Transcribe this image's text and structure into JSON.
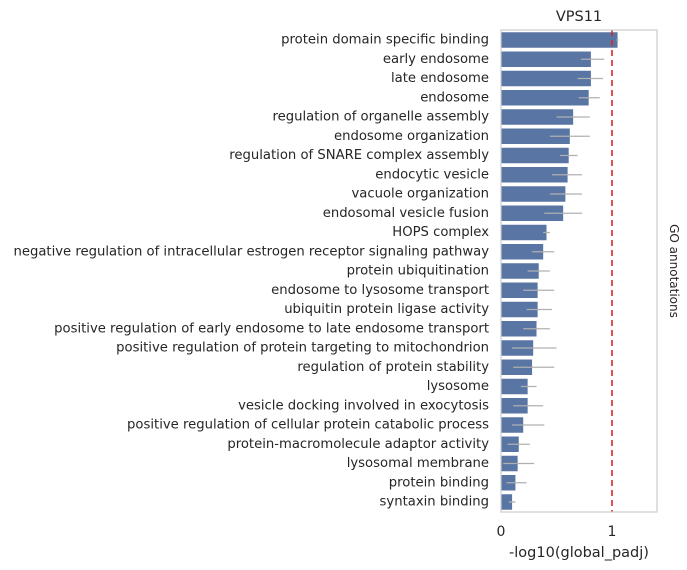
{
  "chart_data": {
    "type": "bar",
    "orientation": "horizontal",
    "title": "VPS11",
    "xlabel": "-log10(global_padj)",
    "ylabel": "",
    "side_label": "GO annotations",
    "xlim": [
      0,
      1.4
    ],
    "xticks": [
      0,
      1
    ],
    "reference_line": {
      "x": 1.0,
      "style": "dashed",
      "color": "#d62728"
    },
    "colors": {
      "bar": "#5875a4",
      "error": "#b0b0b0",
      "frame": "#cccccc"
    },
    "categories": [
      "protein domain specific binding",
      "early endosome",
      "late endosome",
      "endosome",
      "regulation of organelle assembly",
      "endosome organization",
      "regulation of SNARE complex assembly",
      "endocytic vesicle",
      "vacuole organization",
      "endosomal vesicle fusion",
      "HOPS complex",
      "negative regulation of intracellular estrogen receptor signaling pathway",
      "protein ubiquitination",
      "endosome to lysosome transport",
      "ubiquitin protein ligase activity",
      "positive regulation of early endosome to late endosome transport",
      "positive regulation of protein targeting to mitochondrion",
      "regulation of protein stability",
      "lysosome",
      "vesicle docking involved in exocytosis",
      "positive regulation of cellular protein catabolic process",
      "protein-macromolecule adaptor activity",
      "lysosomal membrane",
      "protein binding",
      "syntaxin binding"
    ],
    "values": [
      1.05,
      0.81,
      0.81,
      0.79,
      0.65,
      0.62,
      0.61,
      0.6,
      0.58,
      0.56,
      0.41,
      0.38,
      0.34,
      0.33,
      0.33,
      0.32,
      0.29,
      0.28,
      0.24,
      0.24,
      0.2,
      0.16,
      0.15,
      0.13,
      0.1
    ],
    "error_low": [
      1.04,
      0.72,
      0.69,
      0.7,
      0.5,
      0.44,
      0.53,
      0.46,
      0.44,
      0.39,
      0.38,
      0.28,
      0.24,
      0.2,
      0.23,
      0.2,
      0.1,
      0.11,
      0.18,
      0.11,
      0.1,
      0.06,
      0.02,
      0.05,
      0.07
    ],
    "error_high": [
      1.06,
      0.93,
      0.92,
      0.89,
      0.8,
      0.8,
      0.69,
      0.73,
      0.73,
      0.73,
      0.44,
      0.48,
      0.44,
      0.48,
      0.46,
      0.44,
      0.5,
      0.48,
      0.32,
      0.38,
      0.39,
      0.26,
      0.3,
      0.23,
      0.13
    ]
  }
}
